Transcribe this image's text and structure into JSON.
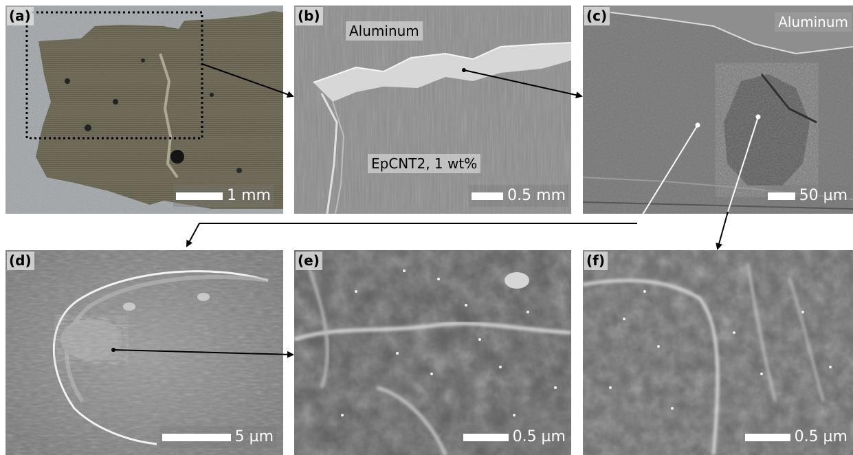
{
  "panels": {
    "a": {
      "label": "(a)",
      "scale": "1 mm"
    },
    "b": {
      "label": "(b)",
      "scale": "0.5 mm",
      "top_label": "Aluminum",
      "bottom_label": "EpCNT2, 1 wt%"
    },
    "c": {
      "label": "(c)",
      "scale": "50 µm",
      "top_label": "Aluminum"
    },
    "d": {
      "label": "(d)",
      "scale": "5 µm"
    },
    "e": {
      "label": "(e)",
      "scale": "0.5 µm"
    },
    "f": {
      "label": "(f)",
      "scale": "0.5 µm"
    }
  },
  "colors": {
    "arrow_dark": "#000000",
    "arrow_light": "#ffffff"
  }
}
